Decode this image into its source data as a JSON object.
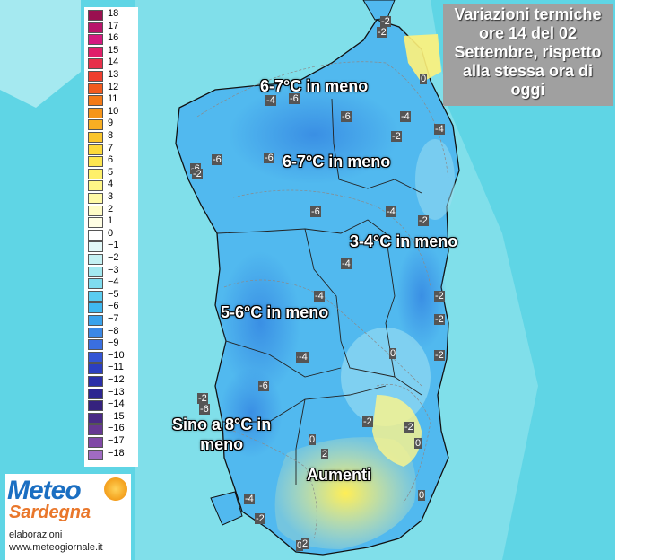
{
  "title": {
    "lines": [
      "Variazioni termiche",
      "ore 14 del 02",
      "Settembre, rispetto",
      "alla stessa ora di",
      "oggi"
    ]
  },
  "legend": {
    "values": [
      "18",
      "17",
      "16",
      "15",
      "14",
      "13",
      "12",
      "11",
      "10",
      "9",
      "8",
      "7",
      "6",
      "5",
      "4",
      "3",
      "2",
      "1",
      "0",
      "−1",
      "−2",
      "−3",
      "−4",
      "−5",
      "−6",
      "−7",
      "−8",
      "−9",
      "−10",
      "−11",
      "−12",
      "−13",
      "−14",
      "−15",
      "−16",
      "−17",
      "−18"
    ],
    "colors": [
      "#9a1050",
      "#b8156a",
      "#d4197f",
      "#e01f6a",
      "#e8304a",
      "#ef3f2e",
      "#f25a1e",
      "#f47a16",
      "#f6951a",
      "#f8ae22",
      "#fac52c",
      "#fcd93a",
      "#fde650",
      "#fef06a",
      "#fff687",
      "#fffaa6",
      "#fffcc6",
      "#fffee4",
      "#ffffff",
      "#e2f8f8",
      "#c4f1f3",
      "#a3e9f0",
      "#7fdcef",
      "#5bccf0",
      "#3fb8f0",
      "#3aa2ec",
      "#3b88e6",
      "#3a6fe0",
      "#3455d4",
      "#2c3fc0",
      "#2a2ea8",
      "#2c2590",
      "#35227e",
      "#4a2a86",
      "#663892",
      "#8048a6",
      "#a06bc2"
    ]
  },
  "zones": [
    {
      "text": "6-7°C in meno"
    },
    {
      "text": "6-7°C in meno"
    },
    {
      "text": "3-4°C in meno"
    },
    {
      "text": "5-6°C in meno"
    },
    {
      "lines": [
        "Sino a 8°C in",
        "meno"
      ]
    },
    {
      "text": "Aumenti"
    }
  ],
  "contour_labels": [
    "-2",
    "-2",
    "0",
    "-4",
    "-6",
    "-6",
    "-4",
    "-4",
    "-2",
    "-6",
    "-6",
    "-2",
    "-6",
    "-6",
    "-4",
    "-2",
    "-4",
    "-2",
    "-4",
    "-2",
    "-4",
    "0",
    "-2",
    "-4",
    "-6",
    "-2",
    "-6",
    "-2",
    "0",
    "-2",
    "0",
    "2",
    "0",
    "-4",
    "-2",
    "0",
    "2"
  ],
  "logo": {
    "title": "Meteo",
    "subtitle": "Sardegna",
    "line1": "elaborazioni",
    "line2": "www.meteogiornale.it"
  },
  "colors": {
    "sea": "#5cd6e6",
    "sea_light": "#a8ecf1",
    "land_main": "#4fb9ef",
    "land_dark": "#3c9be8",
    "land_light": "#8ad8f0",
    "warm": "#fff27a",
    "title_box": "#a0a0a0"
  }
}
